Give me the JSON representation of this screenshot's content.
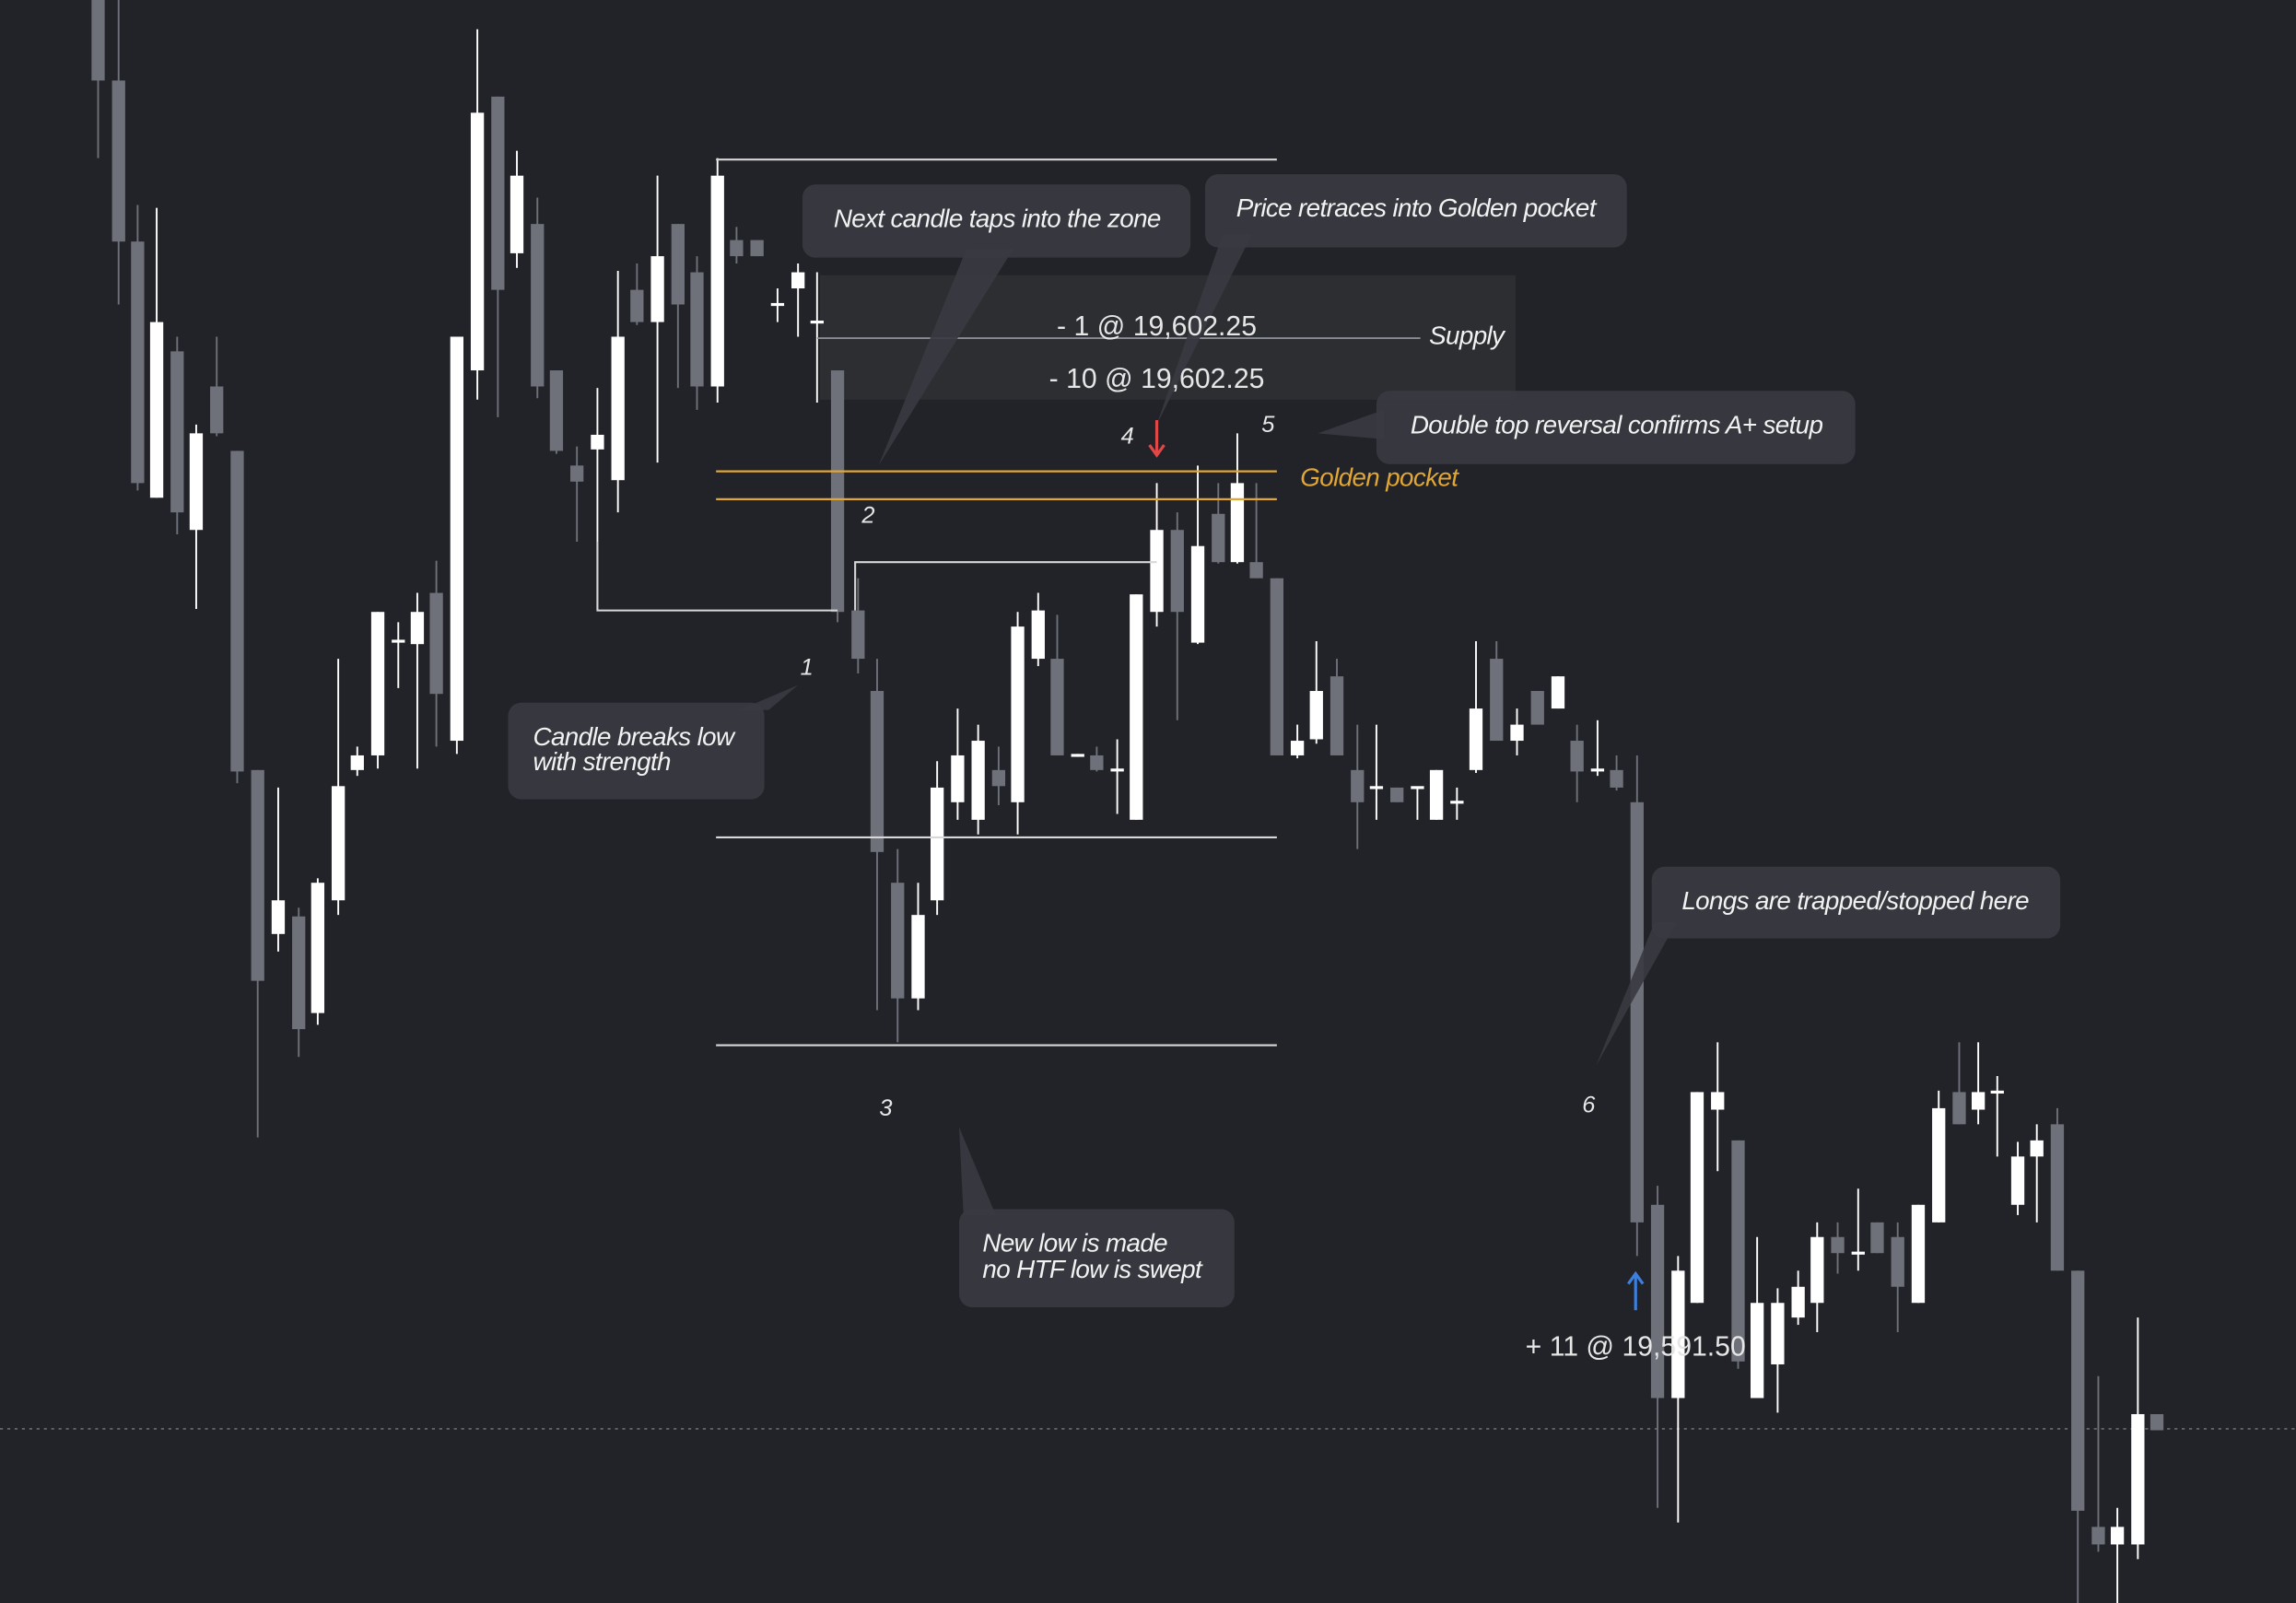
{
  "callouts": [
    {
      "lines": [
        "Next candle taps into the zone"
      ]
    },
    {
      "lines": [
        "Price retraces into Golden pocket"
      ]
    },
    {
      "lines": [
        "Double top reversal confirms A+ setup"
      ]
    },
    {
      "lines": [
        "Candle breaks low",
        "with strength"
      ]
    },
    {
      "lines": [
        "Longs are trapped/stopped here"
      ]
    },
    {
      "lines": [
        "New low is made",
        "no HTF low is swept"
      ]
    }
  ],
  "orders": [
    "- 1 @ 19,602.25",
    "- 10 @ 19,602.25",
    "+ 11 @ 19,591.50"
  ],
  "levels": {
    "supply": "Supply",
    "golden_pocket": "Golden pocket"
  },
  "steps": [
    "1",
    "2",
    "3",
    "4",
    "5",
    "6"
  ]
}
